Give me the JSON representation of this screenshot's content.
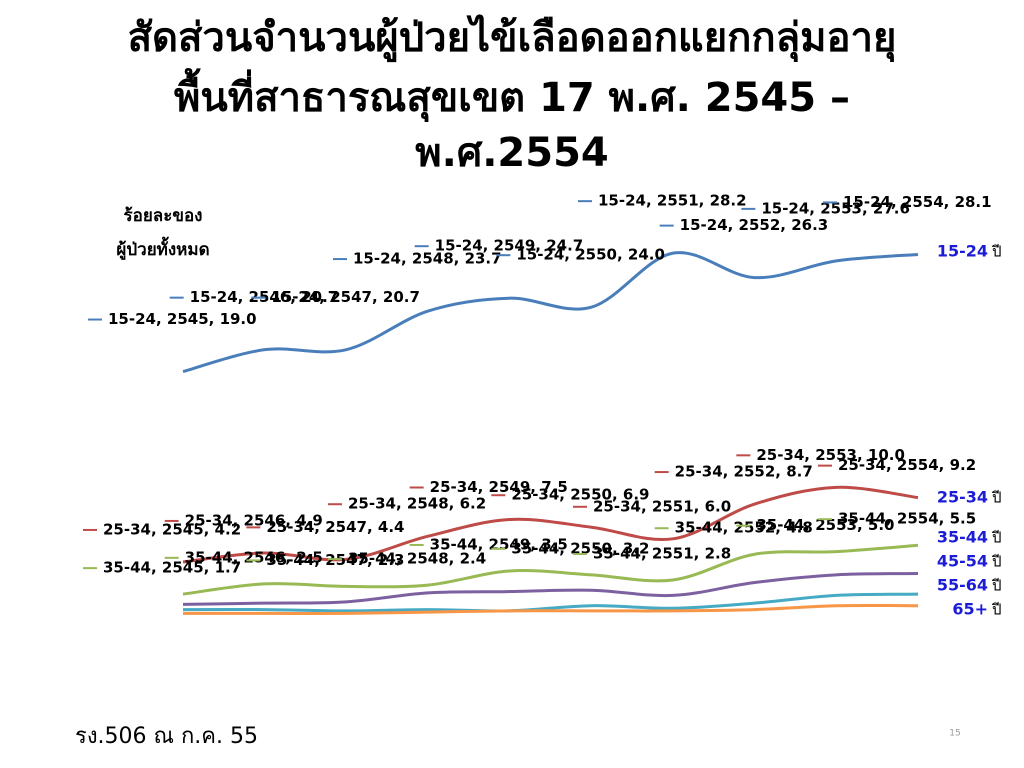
{
  "chart_data": {
    "type": "line",
    "title_lines": [
      "สัดส่วนจำนวนผู้ป่วยไข้เลือดออกแยกกลุ่มอายุ",
      "พื้นที่สาธารณสุขเขต 17 พ.ศ. 2545 –",
      "พ.ศ.2554"
    ],
    "y_label_lines": [
      "ร้อยละของ",
      "ผู้ป่วยทั้งหมด"
    ],
    "x": [
      2545,
      2546,
      2547,
      2548,
      2549,
      2550,
      2551,
      2552,
      2553,
      2554
    ],
    "ylim": [
      0,
      30
    ],
    "series_suffix": "ปี",
    "series": [
      {
        "name": "15-24",
        "color": "#4a7ebb",
        "values": [
          19.0,
          20.7,
          20.7,
          23.7,
          24.7,
          24.0,
          28.2,
          26.3,
          27.6,
          28.1
        ],
        "value_labels": [
          "15-24, 2545, 19.0",
          "15-24, 2546, 20.7",
          "15-24, 2547, 20.7",
          "15-24, 2548, 23.7",
          "15-24, 2549, 24.7",
          "15-24, 2550, 24.0",
          "15-24, 2551, 28.2",
          "15-24, 2552, 26.3",
          "15-24, 2553, 27.6",
          "15-24, 2554, 28.1"
        ]
      },
      {
        "name": "25-34",
        "color": "#be4b48",
        "values": [
          4.2,
          4.9,
          4.4,
          6.2,
          7.5,
          6.9,
          6.0,
          8.7,
          10.0,
          9.2
        ],
        "value_labels": [
          "25-34, 2545, 4.2",
          "25-34, 2546, 4.9",
          "25-34, 2547, 4.4",
          "25-34, 2548, 6.2",
          "25-34, 2549, 7.5",
          "25-34, 2550, 6.9",
          "25-34, 2551, 6.0",
          "25-34, 2552, 8.7",
          "25-34, 2553, 10.0",
          "25-34, 2554, 9.2"
        ]
      },
      {
        "name": "35-44",
        "color": "#98b954",
        "values": [
          1.7,
          2.5,
          2.3,
          2.4,
          3.5,
          3.2,
          2.8,
          4.8,
          5.0,
          5.5
        ],
        "value_labels": [
          "35-44, 2545, 1.7",
          "35-44, 2546, 2.5",
          "35-44, 2547, 2.3",
          "35-44, 2548, 2.4",
          "35-44, 2549, 3.5",
          "35-44, 2550, 3.2",
          "35-44, 2551, 2.8",
          "35-44, 2552, 4.8",
          "35-44, 2553, 5.0",
          "35-44, 2554, 5.5"
        ]
      },
      {
        "name": "45-54",
        "color": "#7d60a0",
        "values": [
          0.9,
          1.0,
          1.1,
          1.8,
          1.9,
          2.0,
          1.6,
          2.6,
          3.2,
          3.3
        ]
      },
      {
        "name": "55-64",
        "color": "#46aac5",
        "values": [
          0.5,
          0.5,
          0.4,
          0.5,
          0.4,
          0.8,
          0.6,
          1.0,
          1.6,
          1.7
        ]
      },
      {
        "name": "65+",
        "color": "#f79646",
        "values": [
          0.2,
          0.2,
          0.2,
          0.3,
          0.4,
          0.4,
          0.4,
          0.5,
          0.8,
          0.8
        ]
      }
    ]
  },
  "footer": "รง.506 ณ ก.ค. 55",
  "page_number": "15"
}
